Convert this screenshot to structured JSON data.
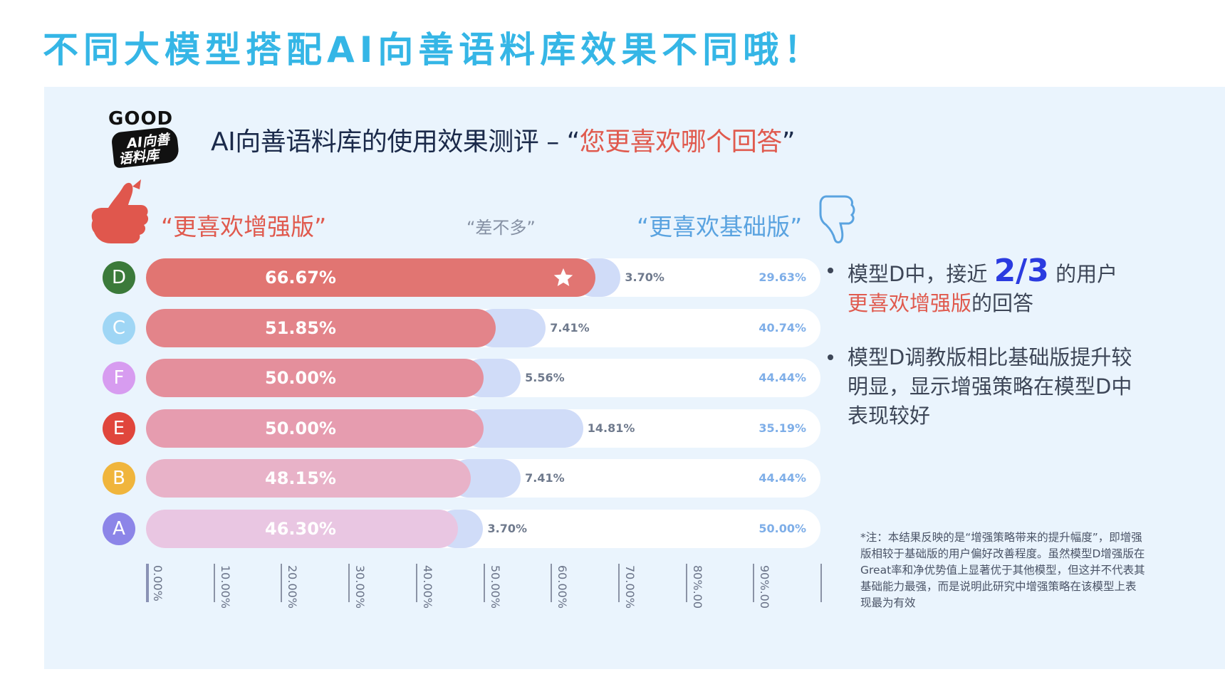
{
  "headline": "不同大模型搭配AI向善语料库效果不同哦！",
  "logo": {
    "top": "GOOD",
    "line1": "AI向善",
    "line2": "语料库"
  },
  "subtitle": {
    "prefix": "AI向善语料库的使用效果测评 – “",
    "quote": "您更喜欢哪个回答",
    "suffix": "”"
  },
  "headers": {
    "enhanced": "“更喜欢增强版”",
    "same": "“差不多”",
    "base": "“更喜欢基础版”"
  },
  "icons": {
    "thumb_up": "thumbs-up-icon",
    "thumb_down": "thumbs-down-icon",
    "star": "star-icon"
  },
  "chart_data": {
    "type": "bar",
    "stacked": true,
    "orientation": "horizontal",
    "categories": [
      "D",
      "C",
      "F",
      "E",
      "B",
      "A"
    ],
    "category_colors": [
      "#3b7a3a",
      "#9fd6f5",
      "#d79cf0",
      "#e0463c",
      "#f0b53c",
      "#8c85e8"
    ],
    "series": [
      {
        "name": "“更喜欢增强版”",
        "values": [
          66.67,
          51.85,
          50.0,
          50.0,
          48.15,
          46.3
        ],
        "labels": [
          "66.67%",
          "51.85%",
          "50.00%",
          "50.00%",
          "48.15%",
          "46.30%"
        ],
        "colors": [
          "#e17572",
          "#e3848a",
          "#e48f9c",
          "#e69caf",
          "#e8b2c8",
          "#e9c6e2"
        ]
      },
      {
        "name": "“差不多”",
        "values": [
          3.7,
          7.41,
          5.56,
          14.81,
          7.41,
          3.7
        ],
        "labels": [
          "3.70%",
          "7.41%",
          "5.56%",
          "14.81%",
          "7.41%",
          "3.70%"
        ],
        "color": "#d0dcf8"
      },
      {
        "name": "“更喜欢基础版”",
        "values": [
          29.63,
          40.74,
          44.44,
          35.19,
          44.44,
          50.0
        ],
        "labels": [
          "29.63%",
          "40.74%",
          "44.44%",
          "35.19%",
          "44.44%",
          "50.00%"
        ],
        "color": "#ffffff"
      }
    ],
    "highlight": {
      "category": "D",
      "marker": "star"
    },
    "xlim": [
      0,
      100
    ],
    "ticks": [
      "0.00%",
      "10.00%",
      "20.00%",
      "30.00%",
      "40.00%",
      "50.00%",
      "60.00%",
      "70.00%",
      "80%.00",
      "90%.00"
    ]
  },
  "bullets": {
    "b1": {
      "pre": "模型D中，接近 ",
      "frac": "2/3",
      "post": " 的用户",
      "red": "更喜欢增强版",
      "tail": "的回答"
    },
    "b2": "模型D调教版相比基础版提升较明显，显示增强策略在模型D中表现较好"
  },
  "note": "*注：本结果反映的是“增强策略带来的提升幅度”，即增强版相较于基础版的用户偏好改善程度。虽然模型D增强版在Great率和净优势值上显著优于其他模型，但这并不代表其基础能力最强，而是说明此研究中增强策略在该模型上表现最为有效"
}
